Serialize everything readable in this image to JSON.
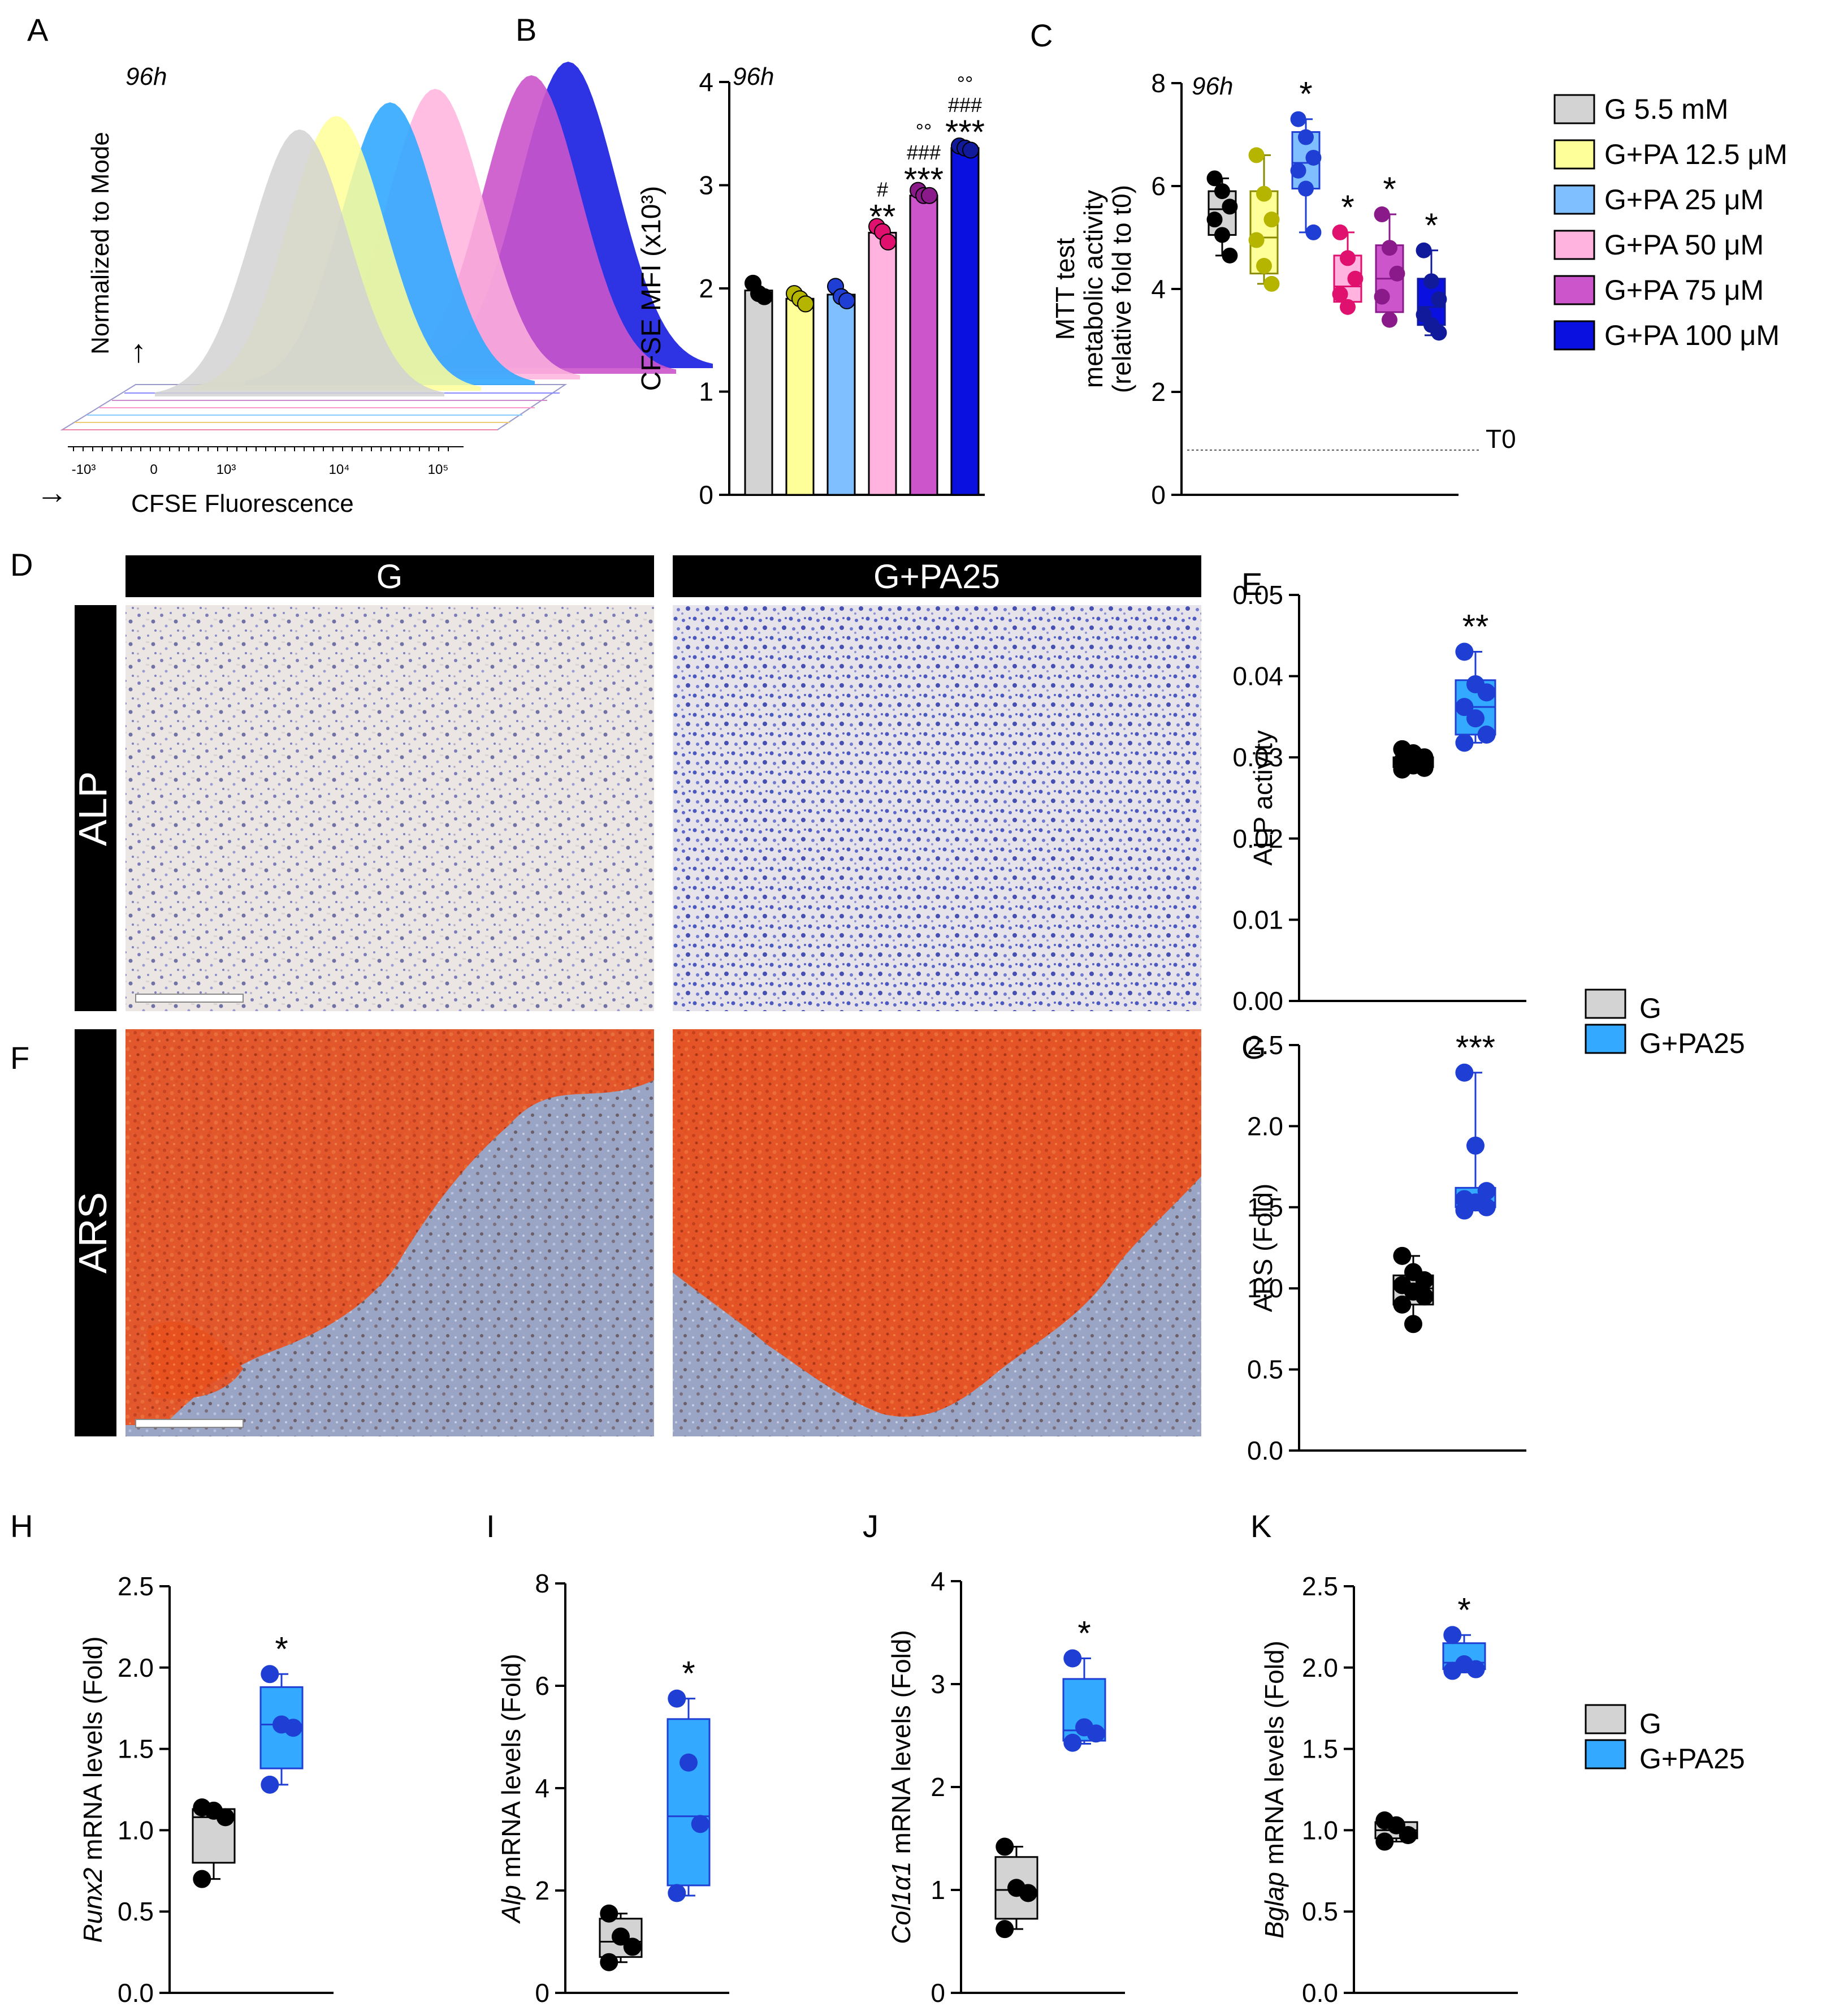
{
  "colors": {
    "g": "#d3d3d3",
    "pa125": "#ffff99",
    "pa25": "#7fbfff",
    "pa50": "#ffb3de",
    "pa75": "#cc55cc",
    "pa100": "#0a10e0",
    "g_bright": "#33aaff",
    "dot_black": "#000000",
    "dot_yellow": "#b5b500",
    "dot_blue": "#1f3fd4",
    "dot_pink": "#e0106e",
    "dot_purple": "#8a1a8a",
    "dot_navy": "#101a9a"
  },
  "panel_letters": [
    "A",
    "B",
    "C",
    "D",
    "E",
    "F",
    "G",
    "H",
    "I",
    "J",
    "K"
  ],
  "legend_main": {
    "items": [
      {
        "label": "G 5.5 mM",
        "color": "#d3d3d3"
      },
      {
        "label": "G+PA 12.5 μM",
        "color": "#ffff99"
      },
      {
        "label": "G+PA 25 μM",
        "color": "#7fbfff"
      },
      {
        "label": "G+PA 50 μM",
        "color": "#ffb3de"
      },
      {
        "label": "G+PA 75 μM",
        "color": "#cc55cc"
      },
      {
        "label": "G+PA 100 μM",
        "color": "#0a10e0"
      }
    ]
  },
  "legend_two": {
    "items": [
      {
        "label": "G",
        "color": "#d3d3d3"
      },
      {
        "label": "G+PA25",
        "color": "#33aaff"
      }
    ]
  },
  "micrographs": {
    "col_g": "G",
    "col_pa": "G+PA25",
    "row_alp": "ALP",
    "row_ars": "ARS"
  },
  "chart_data": [
    {
      "panel": "A",
      "type": "area",
      "title": "96h",
      "ylabel": "Normalized to Mode",
      "xlabel": "CFSE Fluorescence",
      "x_ticks": [
        "-10³",
        "0",
        "10³",
        "10⁴",
        "10⁵"
      ],
      "series": [
        {
          "name": "G 5.5 mM",
          "peak_log": 2.9
        },
        {
          "name": "G+PA 12.5 μM",
          "peak_log": 3.05
        },
        {
          "name": "G+PA 25 μM",
          "peak_log": 3.3
        },
        {
          "name": "G+PA 50 μM",
          "peak_log": 3.5
        },
        {
          "name": "G+PA 75 μM",
          "peak_log": 4.0
        },
        {
          "name": "G+PA 100 μM",
          "peak_log": 4.15
        }
      ]
    },
    {
      "panel": "B",
      "type": "bar",
      "title": "96h",
      "ylabel": "CFSE MFI (x10³)",
      "ylim": [
        0,
        4
      ],
      "yticks": [
        0,
        1,
        2,
        3,
        4
      ],
      "categories": [
        "G 5.5 mM",
        "G+PA 12.5 μM",
        "G+PA 25 μM",
        "G+PA 50 μM",
        "G+PA 75 μM",
        "G+PA 100 μM"
      ],
      "values": [
        1.98,
        1.9,
        1.94,
        2.54,
        2.9,
        3.36
      ],
      "points": [
        [
          2.05,
          1.95,
          1.92
        ],
        [
          1.95,
          1.9,
          1.85
        ],
        [
          2.02,
          1.92,
          1.88
        ],
        [
          2.6,
          2.55,
          2.45
        ],
        [
          2.95,
          2.9,
          2.9
        ],
        [
          3.38,
          3.36,
          3.34
        ]
      ],
      "annotations": [
        {
          "index": 3,
          "lines": [
            "#",
            "**"
          ]
        },
        {
          "index": 4,
          "lines": [
            "°°",
            "###",
            "***"
          ]
        },
        {
          "index": 5,
          "lines": [
            "°°",
            "###",
            "***"
          ]
        }
      ]
    },
    {
      "panel": "C",
      "type": "box",
      "title": "96h",
      "ylabel": "MTT test",
      "ylabel2": "metabolic activity",
      "ylabel3": "(relative fold  to t0)",
      "ylim": [
        0,
        8
      ],
      "yticks": [
        0,
        2,
        4,
        6,
        8
      ],
      "reference_line": {
        "value": 0.87,
        "label": "T0"
      },
      "categories": [
        "G 5.5 mM",
        "G+PA 12.5 μM",
        "G+PA 25 μM",
        "G+PA 50 μM",
        "G+PA 75 μM",
        "G+PA 100 μM"
      ],
      "boxes": [
        {
          "min": 4.65,
          "q1": 5.05,
          "median": 5.55,
          "q3": 5.9,
          "max": 6.15,
          "points": [
            6.15,
            5.9,
            5.6,
            5.35,
            5.05,
            4.65
          ],
          "star": ""
        },
        {
          "min": 4.1,
          "q1": 4.3,
          "median": 5.0,
          "q3": 5.9,
          "max": 6.6,
          "points": [
            6.6,
            5.85,
            5.35,
            4.95,
            4.45,
            4.1
          ],
          "star": ""
        },
        {
          "min": 5.1,
          "q1": 5.95,
          "median": 6.45,
          "q3": 7.05,
          "max": 7.3,
          "points": [
            7.3,
            6.95,
            6.55,
            6.3,
            5.95,
            5.1
          ],
          "star": "*"
        },
        {
          "min": 3.6,
          "q1": 3.75,
          "median": 4.05,
          "q3": 4.65,
          "max": 5.1,
          "points": [
            5.1,
            4.6,
            4.2,
            3.9,
            3.65
          ],
          "star": "*"
        },
        {
          "min": 3.35,
          "q1": 3.55,
          "median": 4.2,
          "q3": 4.85,
          "max": 5.45,
          "points": [
            5.45,
            4.8,
            4.3,
            3.85,
            3.4
          ],
          "star": "*"
        },
        {
          "min": 3.1,
          "q1": 3.3,
          "median": 3.65,
          "q3": 4.2,
          "max": 4.75,
          "points": [
            4.75,
            4.15,
            3.8,
            3.5,
            3.3,
            3.15
          ],
          "star": "*"
        }
      ]
    },
    {
      "panel": "E",
      "type": "box",
      "ylabel": "ALP activity",
      "ylim": [
        0,
        0.05
      ],
      "yticks": [
        "0.00",
        "0.01",
        "0.02",
        "0.03",
        "0.04",
        "0.05"
      ],
      "categories": [
        "G",
        "G+PA25"
      ],
      "boxes": [
        {
          "min": 0.0285,
          "q1": 0.0288,
          "median": 0.0293,
          "q3": 0.03,
          "max": 0.031,
          "points": [
            0.031,
            0.0305,
            0.03,
            0.0295,
            0.029,
            0.0287,
            0.0285
          ],
          "star": ""
        },
        {
          "min": 0.0318,
          "q1": 0.0328,
          "median": 0.0362,
          "q3": 0.0395,
          "max": 0.043,
          "points": [
            0.043,
            0.039,
            0.038,
            0.0362,
            0.0348,
            0.0328,
            0.0318
          ],
          "star": "**"
        }
      ]
    },
    {
      "panel": "G",
      "type": "box",
      "ylabel": "ARS (Fold)",
      "ylim": [
        0,
        2.5
      ],
      "yticks": [
        "0.0",
        "0.5",
        "1.0",
        "1.5",
        "2.0",
        "2.5"
      ],
      "categories": [
        "G",
        "G+PA25"
      ],
      "boxes": [
        {
          "min": 0.78,
          "q1": 0.9,
          "median": 1.0,
          "q3": 1.08,
          "max": 1.2,
          "points": [
            1.2,
            1.1,
            1.05,
            1.02,
            0.98,
            0.95,
            0.9,
            0.78
          ],
          "star": ""
        },
        {
          "min": 1.48,
          "q1": 1.5,
          "median": 1.53,
          "q3": 1.62,
          "max": 2.33,
          "points": [
            2.33,
            1.88,
            1.6,
            1.55,
            1.53,
            1.5,
            1.48
          ],
          "star": "***"
        }
      ]
    },
    {
      "panel": "H",
      "type": "box",
      "ylabel_italic": "Runx2",
      "ylabel": " mRNA levels (Fold)",
      "ylim": [
        0,
        2.5
      ],
      "yticks": [
        "0.0",
        "0.5",
        "1.0",
        "1.5",
        "2.0",
        "2.5"
      ],
      "categories": [
        "G",
        "G+PA25"
      ],
      "boxes": [
        {
          "min": 0.7,
          "q1": 0.8,
          "median": 1.08,
          "q3": 1.13,
          "max": 1.14,
          "points": [
            1.14,
            1.12,
            1.08,
            0.7
          ],
          "star": ""
        },
        {
          "min": 1.28,
          "q1": 1.38,
          "median": 1.65,
          "q3": 1.88,
          "max": 1.96,
          "points": [
            1.96,
            1.65,
            1.63,
            1.28
          ],
          "star": "*"
        }
      ]
    },
    {
      "panel": "I",
      "type": "box",
      "ylabel_italic": "Alp",
      "ylabel": " mRNA levels (Fold)",
      "ylim": [
        0,
        8
      ],
      "yticks": [
        "0",
        "2",
        "4",
        "6",
        "8"
      ],
      "categories": [
        "G",
        "G+PA25"
      ],
      "boxes": [
        {
          "min": 0.6,
          "q1": 0.7,
          "median": 1.0,
          "q3": 1.45,
          "max": 1.55,
          "points": [
            1.55,
            1.1,
            0.9,
            0.6
          ],
          "star": ""
        },
        {
          "min": 1.9,
          "q1": 2.1,
          "median": 3.45,
          "q3": 5.35,
          "max": 5.75,
          "points": [
            5.75,
            4.5,
            3.3,
            1.95
          ],
          "star": "*"
        }
      ]
    },
    {
      "panel": "J",
      "type": "box",
      "ylabel_italic": "Col1α1",
      "ylabel": " mRNA levels (Fold)",
      "ylim": [
        0,
        4
      ],
      "yticks": [
        "0",
        "1",
        "2",
        "3",
        "4"
      ],
      "categories": [
        "G",
        "G+PA25"
      ],
      "boxes": [
        {
          "min": 0.62,
          "q1": 0.72,
          "median": 1.0,
          "q3": 1.32,
          "max": 1.42,
          "points": [
            1.42,
            1.02,
            0.97,
            0.62
          ],
          "star": ""
        },
        {
          "min": 2.42,
          "q1": 2.45,
          "median": 2.55,
          "q3": 3.05,
          "max": 3.25,
          "points": [
            3.25,
            2.58,
            2.52,
            2.43
          ],
          "star": "*"
        }
      ]
    },
    {
      "panel": "K",
      "type": "box",
      "ylabel_italic": "Bglap",
      "ylabel": " mRNA levels (Fold)",
      "ylim": [
        0,
        2.5
      ],
      "yticks": [
        "0.0",
        "0.5",
        "1.0",
        "1.5",
        "2.0",
        "2.5"
      ],
      "categories": [
        "G",
        "G+PA25"
      ],
      "boxes": [
        {
          "min": 0.93,
          "q1": 0.95,
          "median": 1.0,
          "q3": 1.05,
          "max": 1.06,
          "points": [
            1.06,
            1.03,
            0.97,
            0.93
          ],
          "star": ""
        },
        {
          "min": 1.97,
          "q1": 1.99,
          "median": 2.03,
          "q3": 2.15,
          "max": 2.2,
          "points": [
            2.2,
            2.02,
            1.99,
            1.98
          ],
          "star": "*"
        }
      ]
    }
  ]
}
